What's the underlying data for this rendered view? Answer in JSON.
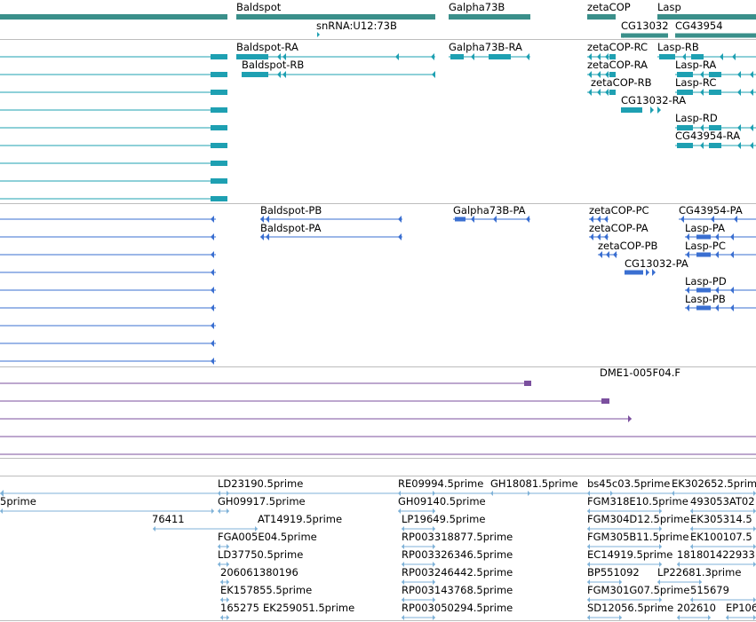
{
  "tracks": {
    "genes": {
      "color": "#3a8f8a",
      "labels": [
        {
          "name": "gene-label-baldspot",
          "text": "Baldspot"
        },
        {
          "name": "gene-label-galpha73b",
          "text": "Galpha73B"
        },
        {
          "name": "gene-label-zetacop",
          "text": "zetaCOP"
        },
        {
          "name": "gene-label-lasp",
          "text": "Lasp"
        },
        {
          "name": "gene-label-snrna",
          "text": "snRNA:U12:73B"
        },
        {
          "name": "gene-label-cg13032",
          "text": "CG13032"
        },
        {
          "name": "gene-label-cg43954",
          "text": "CG43954"
        }
      ]
    },
    "transcripts": {
      "color": "#1ea0b2",
      "labels": [
        {
          "name": "transcript-label-baldspot-ra",
          "text": "Baldspot-RA"
        },
        {
          "name": "transcript-label-galpha73b-ra",
          "text": "Galpha73B-RA"
        },
        {
          "name": "transcript-label-zetacop-rc",
          "text": "zetaCOP-RC"
        },
        {
          "name": "transcript-label-lasp-rb",
          "text": "Lasp-RB"
        },
        {
          "name": "transcript-label-baldspot-rb",
          "text": "Baldspot-RB"
        },
        {
          "name": "transcript-label-zetacop-ra",
          "text": "zetaCOP-RA"
        },
        {
          "name": "transcript-label-lasp-ra",
          "text": "Lasp-RA"
        },
        {
          "name": "transcript-label-zetacop-rb",
          "text": "zetaCOP-RB"
        },
        {
          "name": "transcript-label-lasp-rc",
          "text": "Lasp-RC"
        },
        {
          "name": "transcript-label-cg13032-ra",
          "text": "CG13032-RA"
        },
        {
          "name": "transcript-label-lasp-rd",
          "text": "Lasp-RD"
        },
        {
          "name": "transcript-label-cg43954-ra",
          "text": "CG43954-RA"
        }
      ]
    },
    "proteins": {
      "color": "#3a6fd1",
      "labels": [
        {
          "name": "protein-label-baldspot-pb",
          "text": "Baldspot-PB"
        },
        {
          "name": "protein-label-galpha73b-pa",
          "text": "Galpha73B-PA"
        },
        {
          "name": "protein-label-zetacop-pc",
          "text": "zetaCOP-PC"
        },
        {
          "name": "protein-label-cg43954-pa",
          "text": "CG43954-PA"
        },
        {
          "name": "protein-label-baldspot-pa",
          "text": "Baldspot-PA"
        },
        {
          "name": "protein-label-zetacop-pa",
          "text": "zetaCOP-PA"
        },
        {
          "name": "protein-label-lasp-pa",
          "text": "Lasp-PA"
        },
        {
          "name": "protein-label-zetacop-pb",
          "text": "zetaCOP-PB"
        },
        {
          "name": "protein-label-lasp-pc",
          "text": "Lasp-PC"
        },
        {
          "name": "protein-label-cg13032-pa",
          "text": "CG13032-PA"
        },
        {
          "name": "protein-label-lasp-pd",
          "text": "Lasp-PD"
        },
        {
          "name": "protein-label-lasp-pb",
          "text": "Lasp-PB"
        }
      ]
    },
    "clones": {
      "color": "#7b4f9e",
      "labels": [
        {
          "name": "clone-label-dme1",
          "text": "DME1-005F04.F"
        }
      ]
    },
    "ests": {
      "color": "#7fb2d8",
      "labels": [
        {
          "name": "est-label-ld23190",
          "text": "LD23190.5prime"
        },
        {
          "name": "est-label-re09994",
          "text": "RE09994.5prime"
        },
        {
          "name": "est-label-gh18081",
          "text": "GH18081.5prime"
        },
        {
          "name": "est-label-bs45c03",
          "text": "bs45c03.5prime"
        },
        {
          "name": "est-label-ek302652",
          "text": "EK302652.5prime"
        },
        {
          "name": "est-label-5prime",
          "text": "5prime"
        },
        {
          "name": "est-label-gh09917",
          "text": "GH09917.5prime"
        },
        {
          "name": "est-label-gh09140",
          "text": "GH09140.5prime"
        },
        {
          "name": "est-label-fgm318e10",
          "text": "FGM318E10.5prime"
        },
        {
          "name": "est-label-493053at02",
          "text": "493053AT02"
        },
        {
          "name": "est-label-76411",
          "text": "76411"
        },
        {
          "name": "est-label-at14919",
          "text": "AT14919.5prime"
        },
        {
          "name": "est-label-lp19649",
          "text": "LP19649.5prime"
        },
        {
          "name": "est-label-fgm304d12",
          "text": "FGM304D12.5prime"
        },
        {
          "name": "est-label-ek305314",
          "text": "EK305314.5"
        },
        {
          "name": "est-label-fga005e04",
          "text": "FGA005E04.5prime"
        },
        {
          "name": "est-label-rp003318877",
          "text": "RP003318877.5prime"
        },
        {
          "name": "est-label-fgm305b11",
          "text": "FGM305B11.5prime"
        },
        {
          "name": "est-label-ek100107",
          "text": "EK100107.5"
        },
        {
          "name": "est-label-ld37750",
          "text": "LD37750.5prime"
        },
        {
          "name": "est-label-rp003326346",
          "text": "RP003326346.5prime"
        },
        {
          "name": "est-label-ec14919",
          "text": "EC14919.5prime"
        },
        {
          "name": "est-label-181801422933",
          "text": "181801422933"
        },
        {
          "name": "est-label-206061380196",
          "text": "206061380196"
        },
        {
          "name": "est-label-rp003246442",
          "text": "RP003246442.5prime"
        },
        {
          "name": "est-label-bp551092",
          "text": "BP551092"
        },
        {
          "name": "est-label-lp22681",
          "text": "LP22681.3prime"
        },
        {
          "name": "est-label-ek157855",
          "text": "EK157855.5prime"
        },
        {
          "name": "est-label-rp003143768",
          "text": "RP003143768.5prime"
        },
        {
          "name": "est-label-fgm301g07",
          "text": "FGM301G07.5prime"
        },
        {
          "name": "est-label-515679",
          "text": "515679"
        },
        {
          "name": "est-label-165275",
          "text": "165275"
        },
        {
          "name": "est-label-ek259051",
          "text": "EK259051.5prime"
        },
        {
          "name": "est-label-rp003050294",
          "text": "RP003050294.5prime"
        },
        {
          "name": "est-label-sd12056",
          "text": "SD12056.5prime"
        },
        {
          "name": "est-label-202610",
          "text": "202610"
        },
        {
          "name": "est-label-ep106",
          "text": "EP106"
        }
      ]
    }
  }
}
